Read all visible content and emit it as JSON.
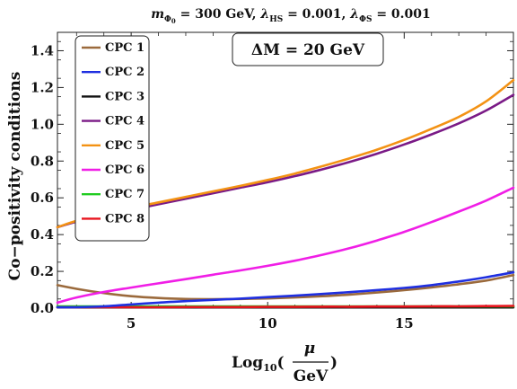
{
  "chart_data": {
    "type": "line",
    "title": {
      "mass_sym": "m",
      "mass_sub": "Φ",
      "mass_sub2": "0",
      "mass_val": " = 300 GeV, ",
      "l1_sym": "λ",
      "l1_sub": "HS",
      "l1_val": " = 0.001, ",
      "l2_sym": "λ",
      "l2_sub": "ΦS",
      "l2_val": " = 0.001"
    },
    "annotation": "ΔM = 20 GeV",
    "xlabel": {
      "prefix": "Log",
      "sub": "10",
      "open": "(",
      "num": "μ",
      "den": "GeV",
      "close": ")"
    },
    "ylabel": "Co−positivity conditions",
    "xlim": [
      2.3,
      19
    ],
    "ylim": [
      0,
      1.5
    ],
    "xticks": [
      "5",
      "10",
      "15"
    ],
    "xtick_values": [
      5,
      10,
      15
    ],
    "yticks": [
      "0.0",
      "0.2",
      "0.4",
      "0.6",
      "0.8",
      "1.0",
      "1.2",
      "1.4"
    ],
    "ytick_values": [
      0,
      0.2,
      0.4,
      0.6,
      0.8,
      1.0,
      1.2,
      1.4
    ],
    "legend_position": "top-left",
    "x": [
      2.3,
      3,
      4,
      5,
      6,
      7,
      8,
      9,
      10,
      11,
      12,
      13,
      14,
      15,
      16,
      17,
      18,
      19
    ],
    "series": [
      {
        "name": "CPC 1",
        "color": "#9b6a3c",
        "values": [
          0.125,
          0.105,
          0.082,
          0.065,
          0.055,
          0.05,
          0.049,
          0.05,
          0.053,
          0.058,
          0.065,
          0.074,
          0.085,
          0.098,
          0.113,
          0.13,
          0.15,
          0.18
        ]
      },
      {
        "name": "CPC 2",
        "color": "#1f2fe0",
        "values": [
          0.0,
          0.003,
          0.01,
          0.02,
          0.03,
          0.038,
          0.045,
          0.052,
          0.06,
          0.068,
          0.077,
          0.087,
          0.098,
          0.11,
          0.125,
          0.145,
          0.168,
          0.195
        ]
      },
      {
        "name": "CPC 3",
        "color": "#111111",
        "values": [
          0.0,
          0.0,
          0.0,
          0.0,
          0.0,
          0.0,
          0.0,
          0.0,
          0.0,
          0.0,
          0.0,
          0.0,
          0.0,
          0.0,
          0.0,
          0.0,
          0.0,
          0.0
        ]
      },
      {
        "name": "CPC 4",
        "color": "#7a1a86",
        "values": [
          0.44,
          0.47,
          0.505,
          0.535,
          0.565,
          0.595,
          0.625,
          0.655,
          0.685,
          0.718,
          0.755,
          0.795,
          0.84,
          0.89,
          0.945,
          1.005,
          1.075,
          1.16
        ]
      },
      {
        "name": "CPC 5",
        "color": "#f39214",
        "values": [
          0.44,
          0.475,
          0.51,
          0.545,
          0.575,
          0.605,
          0.635,
          0.665,
          0.697,
          0.732,
          0.772,
          0.815,
          0.862,
          0.915,
          0.975,
          1.04,
          1.125,
          1.24
        ]
      },
      {
        "name": "CPC 6",
        "color": "#f01ee6",
        "values": [
          0.03,
          0.058,
          0.088,
          0.112,
          0.135,
          0.158,
          0.182,
          0.205,
          0.23,
          0.258,
          0.29,
          0.326,
          0.368,
          0.415,
          0.468,
          0.525,
          0.585,
          0.655
        ]
      },
      {
        "name": "CPC 7",
        "color": "#22cc22",
        "values": [
          0.01,
          0.01,
          0.01,
          0.01,
          0.01,
          0.01,
          0.01,
          0.01,
          0.01,
          0.01,
          0.01,
          0.01,
          0.01,
          0.01,
          0.01,
          0.01,
          0.01,
          0.01
        ]
      },
      {
        "name": "CPC 8",
        "color": "#e8141e",
        "values": [
          0.005,
          0.005,
          0.005,
          0.005,
          0.005,
          0.006,
          0.006,
          0.006,
          0.007,
          0.007,
          0.008,
          0.008,
          0.009,
          0.009,
          0.01,
          0.01,
          0.011,
          0.012
        ]
      }
    ]
  }
}
